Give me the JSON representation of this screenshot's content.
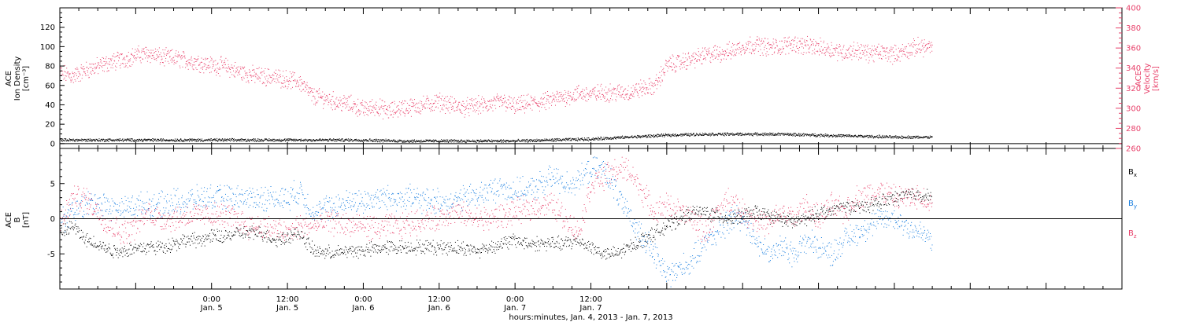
{
  "chart_data": [
    {
      "type": "scatter",
      "panel": "top",
      "left_axis_label": [
        "ACE",
        "Ion Density",
        "[cm⁻³]"
      ],
      "right_axis_label": [
        "ACE",
        "Velocity",
        "[km/s]"
      ],
      "left_ylim": [
        -5,
        140
      ],
      "left_yticks": [
        0,
        20,
        40,
        60,
        80,
        100,
        120
      ],
      "right_ylim": [
        260,
        400
      ],
      "right_yticks": [
        260,
        280,
        300,
        320,
        340,
        360,
        380,
        400
      ],
      "colors": {
        "density": "#000000",
        "velocity": "#e8406a"
      },
      "series": [
        {
          "axis": "left",
          "color": "#000000",
          "x": [
            0,
            6,
            12,
            18,
            24,
            30,
            36,
            42,
            48,
            54,
            60,
            66,
            72,
            78,
            84,
            90,
            96,
            102,
            108,
            114,
            120,
            126,
            132,
            138
          ],
          "values": [
            4,
            4,
            4,
            4,
            4,
            4,
            4,
            4,
            4,
            3,
            3,
            3,
            3,
            4,
            5,
            7,
            9,
            10,
            10,
            10,
            9,
            8,
            7,
            7
          ]
        },
        {
          "axis": "right",
          "color": "#e8406a",
          "x": [
            0,
            2,
            4,
            6,
            8,
            10,
            12,
            14,
            16,
            18,
            20,
            22,
            24,
            26,
            28,
            30,
            32,
            34,
            36,
            38,
            40,
            42,
            44,
            46,
            48,
            50,
            52,
            54,
            56,
            58,
            60,
            62,
            64,
            66,
            68,
            70,
            72,
            74,
            76,
            78,
            80,
            82,
            84,
            86,
            88,
            90,
            92,
            94,
            96,
            98,
            100,
            102,
            104,
            106,
            108,
            110,
            112,
            114,
            116,
            118,
            120,
            122,
            124,
            126,
            128,
            130,
            132,
            134,
            136,
            138
          ],
          "values": [
            336,
            332,
            338,
            342,
            346,
            349,
            353,
            355,
            351,
            350,
            348,
            346,
            343,
            342,
            337,
            334,
            332,
            331,
            329,
            326,
            312,
            310,
            306,
            304,
            299,
            302,
            297,
            301,
            302,
            304,
            307,
            303,
            301,
            303,
            304,
            307,
            302,
            305,
            306,
            309,
            312,
            315,
            314,
            316,
            316,
            316,
            320,
            322,
            343,
            346,
            349,
            353,
            355,
            357,
            362,
            364,
            361,
            362,
            365,
            362,
            361,
            359,
            356,
            358,
            355,
            356,
            354,
            358,
            362,
            360
          ]
        }
      ]
    },
    {
      "type": "scatter",
      "panel": "bottom",
      "left_axis_label": [
        "ACE",
        "B",
        "[nT]"
      ],
      "ylim": [
        -10,
        10
      ],
      "yticks": [
        -5,
        0,
        5
      ],
      "legend": [
        {
          "name": "B",
          "sub": "x",
          "color": "#000000"
        },
        {
          "name": "B",
          "sub": "y",
          "color": "#1a7fe0"
        },
        {
          "name": "B",
          "sub": "z",
          "color": "#e8406a"
        }
      ],
      "series": [
        {
          "name": "Bx",
          "color": "#000000",
          "x": [
            0,
            2,
            4,
            6,
            8,
            10,
            12,
            14,
            16,
            18,
            20,
            22,
            24,
            26,
            28,
            30,
            32,
            34,
            36,
            38,
            40,
            42,
            44,
            46,
            48,
            50,
            52,
            54,
            56,
            58,
            60,
            62,
            64,
            66,
            68,
            70,
            72,
            74,
            76,
            78,
            80,
            82,
            84,
            86,
            88,
            90,
            92,
            94,
            96,
            98,
            100,
            102,
            104,
            106,
            108,
            110,
            112,
            114,
            116,
            118,
            120,
            122,
            124,
            126,
            128,
            130,
            132,
            134,
            136,
            138
          ],
          "values": [
            -2,
            -1,
            -3,
            -3.5,
            -4.5,
            -4.5,
            -4.2,
            -4,
            -4,
            -3.5,
            -3,
            -3,
            -2.5,
            -2.5,
            -2,
            -2,
            -2,
            -3,
            -2.5,
            -2,
            -4.5,
            -4.8,
            -4.8,
            -4.5,
            -4.5,
            -4.2,
            -4,
            -4,
            -4,
            -4,
            -4,
            -4,
            -4.2,
            -4.5,
            -4,
            -3.5,
            -3,
            -3.5,
            -3.5,
            -3.5,
            -3.5,
            -3,
            -4,
            -5,
            -5,
            -4,
            -3,
            -2,
            -1,
            0,
            1,
            1,
            0.5,
            0,
            0.5,
            1,
            0.5,
            0,
            -0.5,
            0,
            1,
            1,
            2,
            1.5,
            2,
            2.5,
            3,
            3.5,
            3.5,
            3
          ]
        },
        {
          "name": "By",
          "color": "#1a7fe0",
          "x": [
            0,
            2,
            4,
            6,
            8,
            10,
            12,
            14,
            16,
            18,
            20,
            22,
            24,
            26,
            28,
            30,
            32,
            34,
            36,
            38,
            40,
            42,
            44,
            46,
            48,
            50,
            52,
            54,
            56,
            58,
            60,
            62,
            64,
            66,
            68,
            70,
            72,
            74,
            76,
            78,
            80,
            82,
            84,
            86,
            88,
            90,
            92,
            94,
            96,
            98,
            100,
            102,
            104,
            106,
            108,
            110,
            112,
            114,
            116,
            118,
            120,
            122,
            124,
            126,
            128,
            130,
            132,
            134,
            136,
            138
          ],
          "values": [
            -0.5,
            1,
            2,
            2.5,
            1.5,
            1.5,
            2,
            2,
            2,
            2.5,
            2.5,
            3,
            3,
            3,
            3,
            3,
            3,
            3,
            3,
            4,
            1,
            1.5,
            2,
            2.5,
            2.5,
            3,
            3,
            3,
            3,
            2.5,
            2.5,
            2.5,
            3,
            3.5,
            4,
            4.5,
            4,
            4,
            5,
            6,
            5,
            5.5,
            7,
            7,
            4,
            0,
            -2,
            -5,
            -8,
            -7,
            -6,
            -3,
            -2,
            0,
            0.5,
            -3,
            -5,
            -4,
            -5,
            -3,
            -4,
            -5,
            -3,
            -2,
            -1,
            0,
            0,
            -1,
            -2,
            -3
          ]
        },
        {
          "name": "Bz",
          "color": "#e8406a",
          "x": [
            0,
            2,
            4,
            6,
            8,
            10,
            12,
            14,
            16,
            18,
            20,
            22,
            24,
            26,
            28,
            30,
            32,
            34,
            36,
            38,
            40,
            42,
            44,
            46,
            48,
            50,
            52,
            54,
            56,
            58,
            60,
            62,
            64,
            66,
            68,
            70,
            72,
            74,
            76,
            78,
            80,
            82,
            84,
            86,
            88,
            90,
            92,
            94,
            96,
            98,
            100,
            102,
            104,
            106,
            108,
            110,
            112,
            114,
            116,
            118,
            120,
            122,
            124,
            126,
            128,
            130,
            132,
            134,
            136,
            138
          ],
          "values": [
            -1,
            3,
            3,
            1,
            -1,
            -2,
            -1,
            1,
            0,
            0,
            0.5,
            0.5,
            0.5,
            0.5,
            0,
            -1,
            -1,
            -1.5,
            -2,
            -1,
            -1,
            -0.5,
            -0.5,
            -1,
            -1,
            -1.5,
            -1,
            -1,
            -0.5,
            0,
            0,
            1,
            0.5,
            0,
            0,
            0.5,
            1,
            1.5,
            2,
            2,
            0,
            -2,
            5,
            6,
            7,
            7,
            4,
            1,
            2,
            1,
            0,
            -2,
            1,
            3,
            1,
            0,
            -1,
            1,
            0,
            2,
            0,
            2,
            1,
            3,
            3.5,
            4,
            3,
            3,
            3,
            2.5
          ]
        }
      ]
    },
    {
      "type": "time_axis",
      "xlim": [
        0,
        168
      ],
      "xlabel": "hours:minutes, Jan.  4, 2013 - Jan.  7, 2013",
      "ticks": [
        {
          "x": 24,
          "time": "0:00",
          "date": "Jan. 5"
        },
        {
          "x": 36,
          "time": "12:00",
          "date": "Jan. 5"
        },
        {
          "x": 48,
          "time": "0:00",
          "date": "Jan. 6"
        },
        {
          "x": 60,
          "time": "12:00",
          "date": "Jan. 6"
        },
        {
          "x": 72,
          "time": "0:00",
          "date": "Jan. 7"
        },
        {
          "x": 84,
          "time": "12:00",
          "date": "Jan. 7"
        }
      ]
    }
  ]
}
